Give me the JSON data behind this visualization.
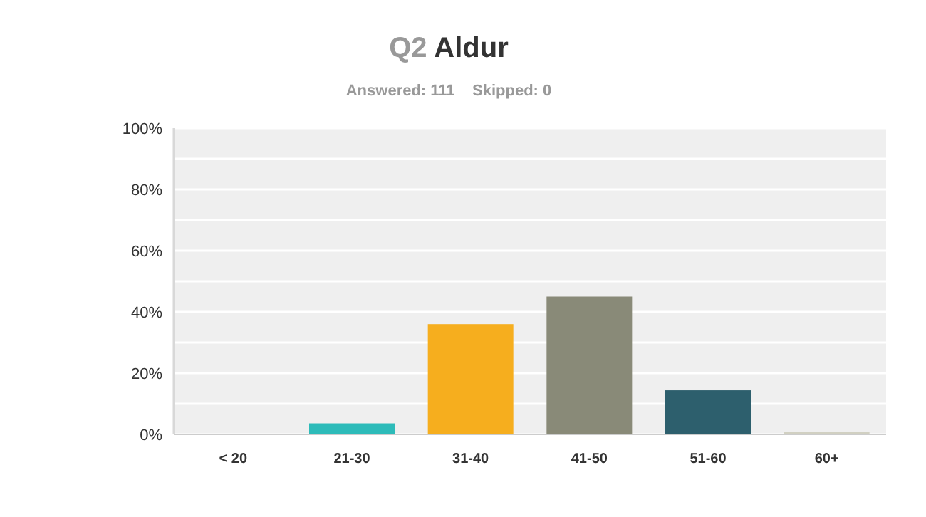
{
  "chart_data": {
    "type": "bar",
    "title": "Q2 Aldur",
    "subtitle": "Answered: 111    Skipped: 0",
    "categories": [
      "< 20",
      "21-30",
      "31-40",
      "41-50",
      "51-60",
      "60+"
    ],
    "values": [
      0,
      3.6,
      36.0,
      45.0,
      14.4,
      0.9
    ],
    "colors": [
      "#2dbbb9",
      "#2dbbb9",
      "#f6ae1e",
      "#898a78",
      "#2d5f6d",
      "#d1d0c2"
    ],
    "ylim": [
      0,
      100
    ],
    "yticks": [
      {
        "value": 0,
        "label": "0%"
      },
      {
        "value": 10,
        "label": null
      },
      {
        "value": 20,
        "label": "20%"
      },
      {
        "value": 30,
        "label": null
      },
      {
        "value": 40,
        "label": "40%"
      },
      {
        "value": 50,
        "label": null
      },
      {
        "value": 60,
        "label": "60%"
      },
      {
        "value": 70,
        "label": null
      },
      {
        "value": 80,
        "label": "80%"
      },
      {
        "value": 90,
        "label": null
      },
      {
        "value": 100,
        "label": "100%"
      }
    ],
    "grid": true
  }
}
